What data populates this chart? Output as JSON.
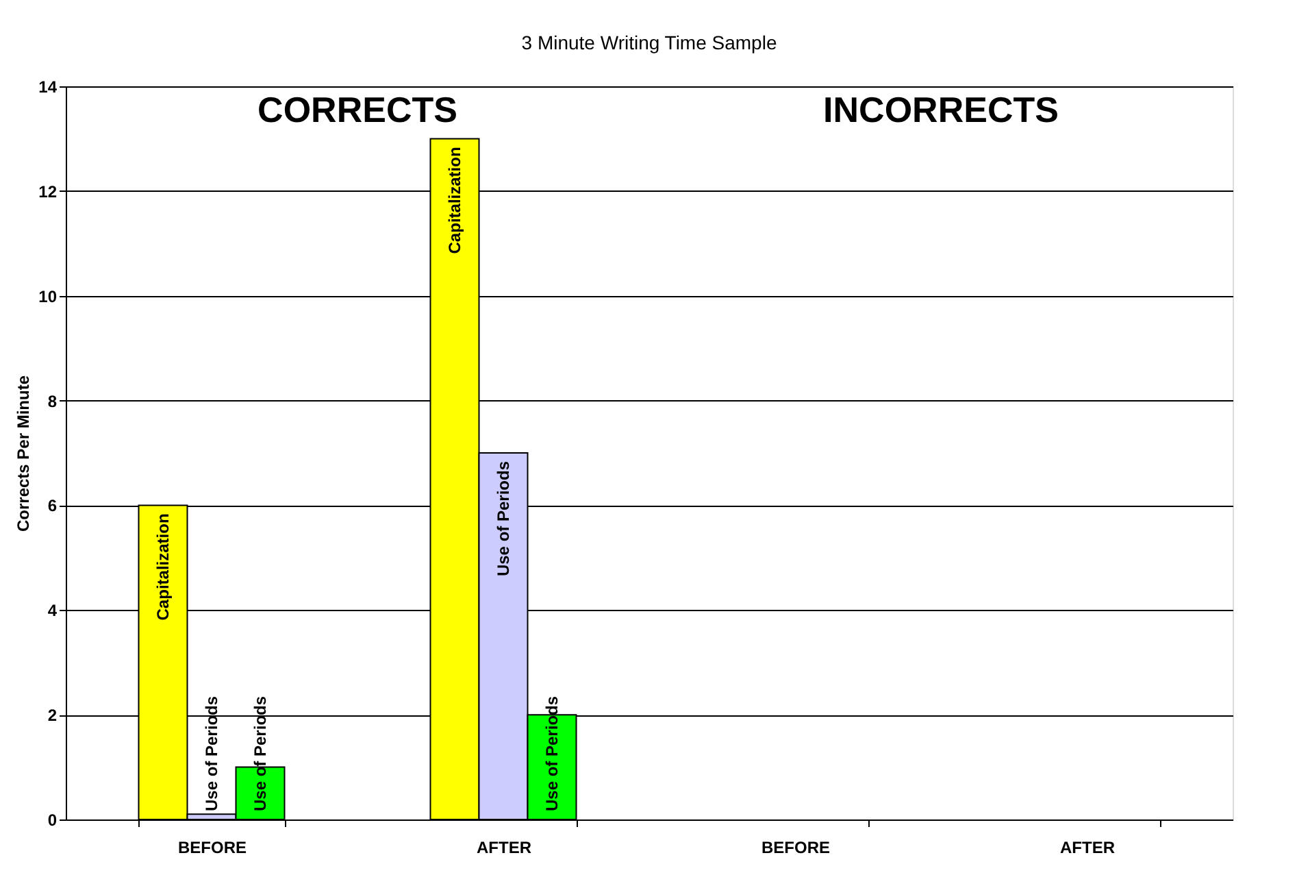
{
  "chart_data": {
    "type": "bar",
    "title": "3 Minute Writing Time Sample",
    "ylabel": "Corrects Per Minute",
    "categories": [
      "BEFORE",
      "AFTER",
      "BEFORE",
      "AFTER"
    ],
    "series": [
      {
        "name": "Capitalization",
        "color": "#ffff00",
        "values": [
          6,
          13,
          null,
          null
        ]
      },
      {
        "name": "Use of Periods",
        "color": "#ccccff",
        "values": [
          0.1,
          7,
          null,
          null
        ]
      },
      {
        "name": "Use of Periods",
        "color": "#00ff00",
        "values": [
          1,
          2,
          null,
          null
        ]
      }
    ],
    "annotations": [
      "CORRECTS",
      "INCORRECTS"
    ],
    "ylim": [
      0,
      14
    ],
    "yticks": [
      0,
      2,
      4,
      6,
      8,
      10,
      12,
      14
    ],
    "grid": "y",
    "legend": false
  }
}
